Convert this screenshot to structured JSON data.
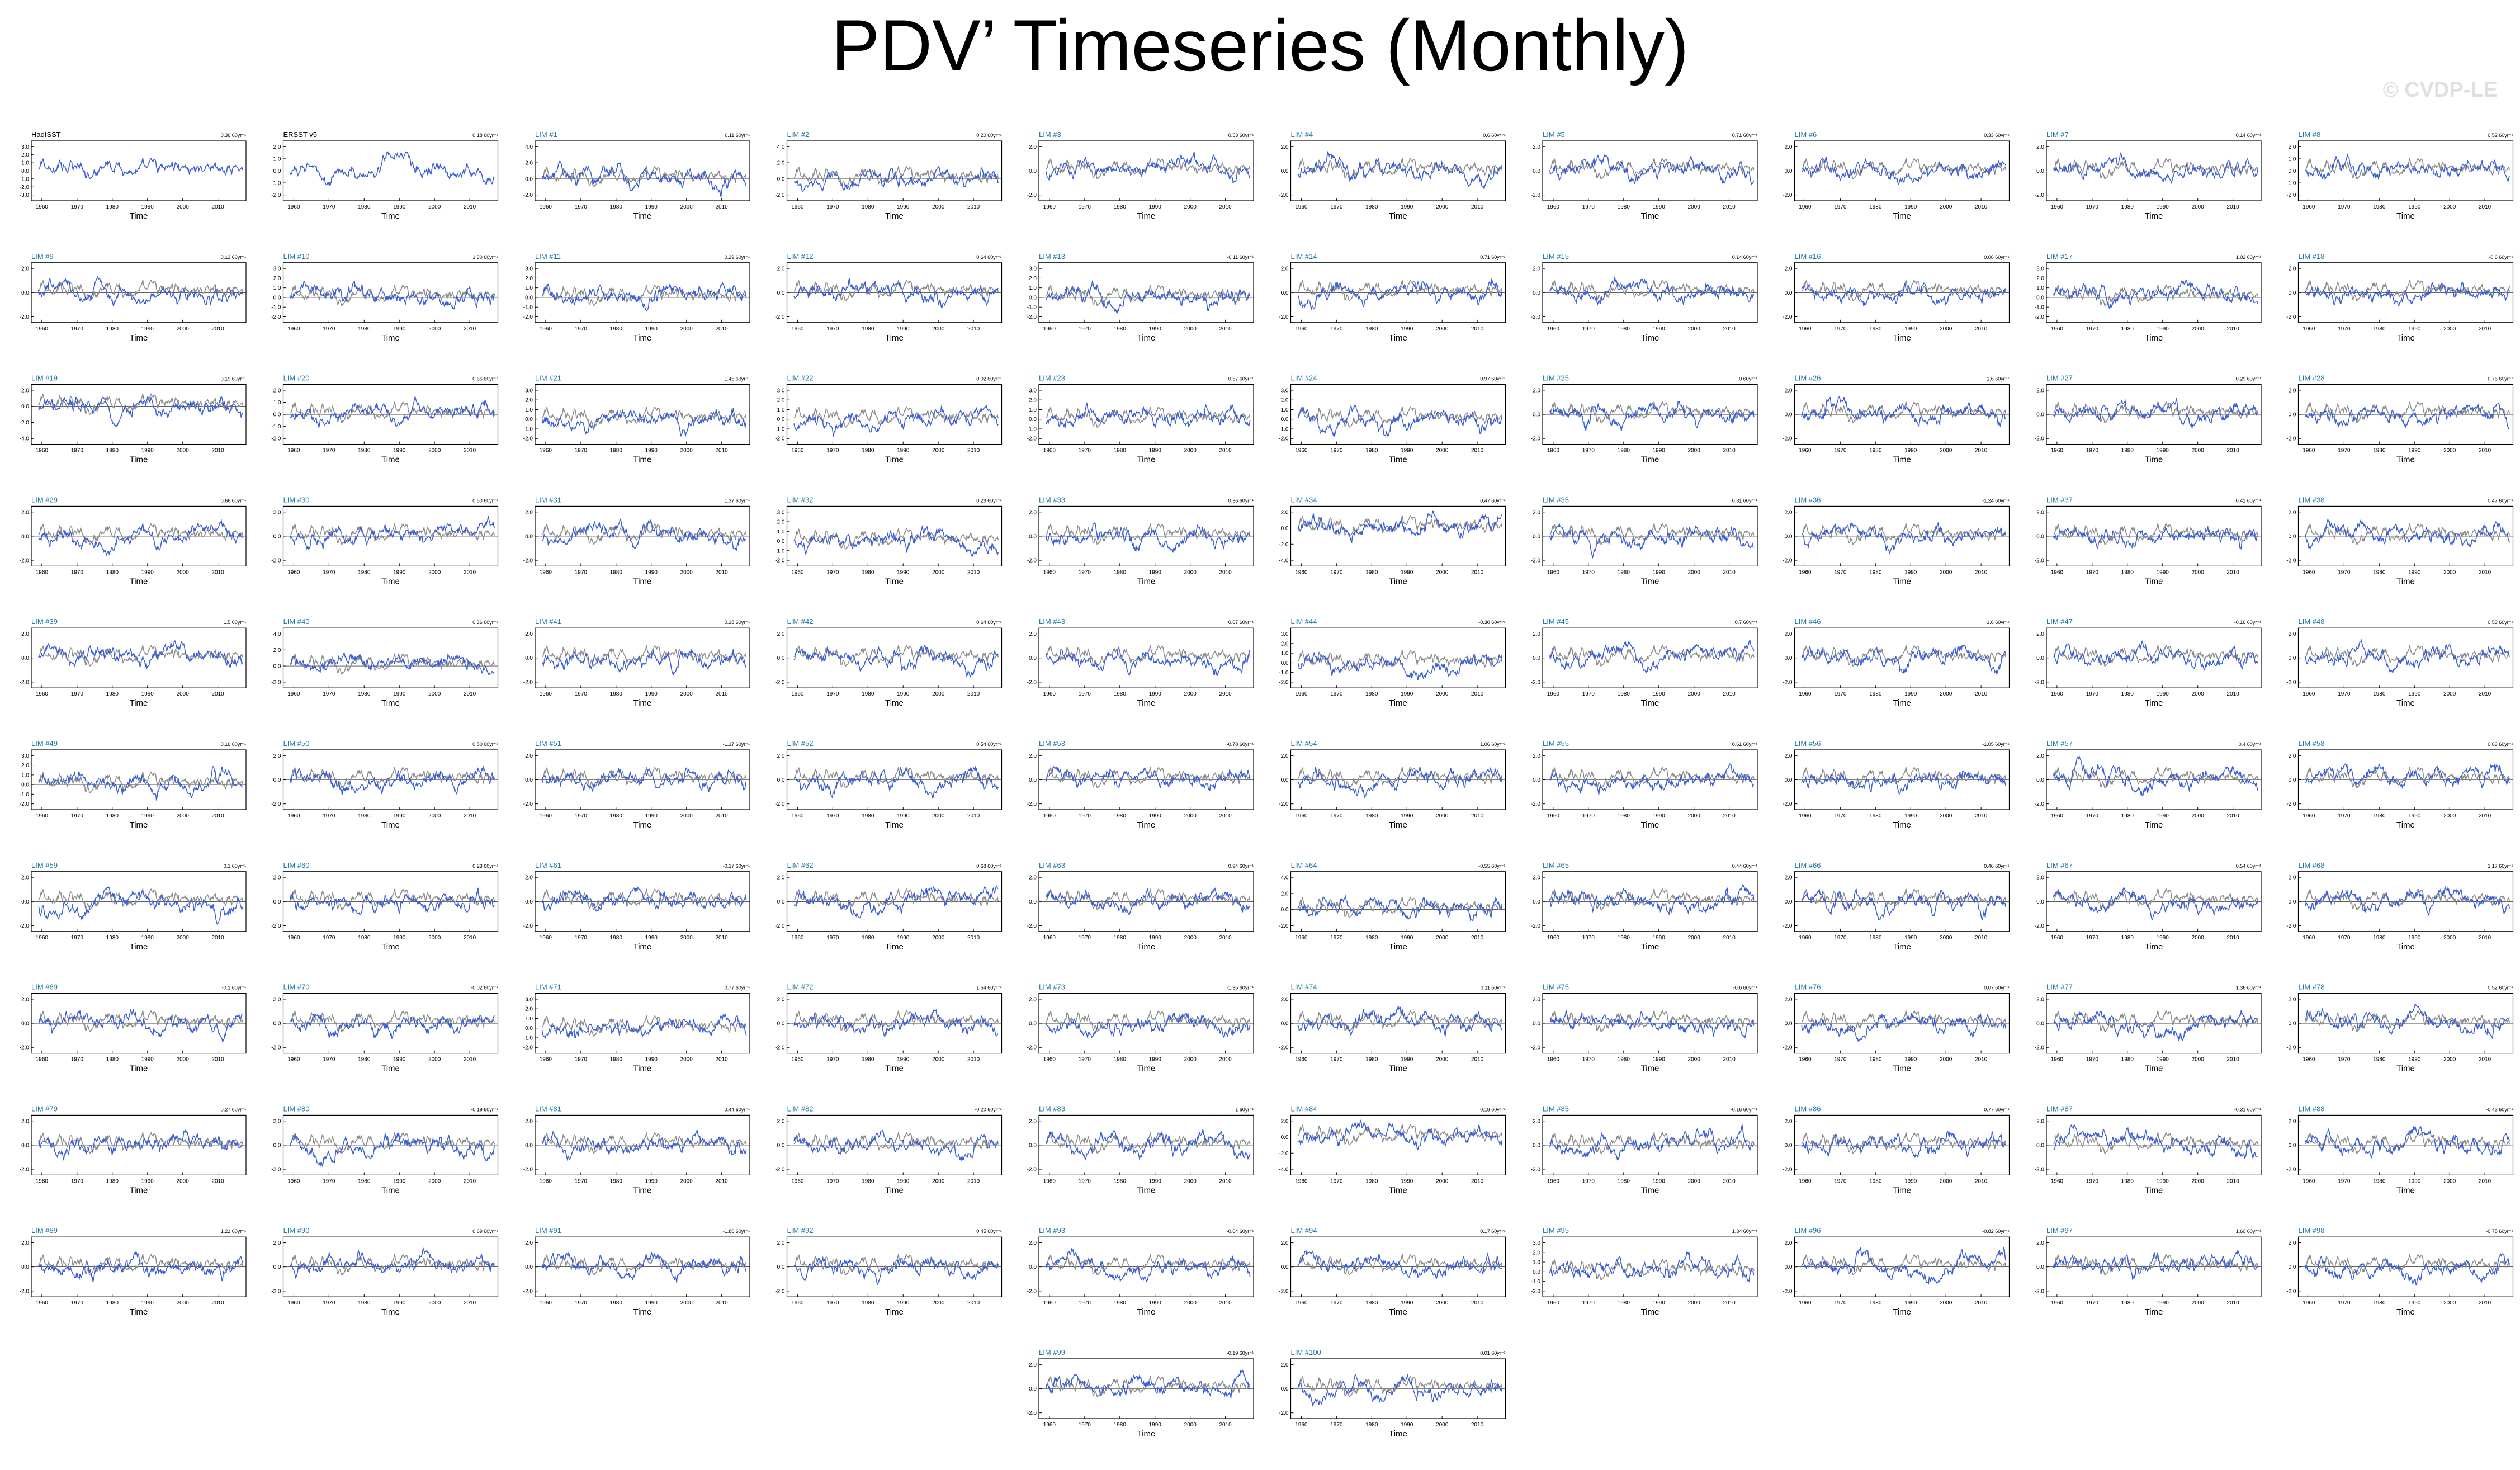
{
  "title": "PDV’ Timeseries (Monthly)",
  "watermark": "© CVDP-LE",
  "colors": {
    "member": "#3a5fd6",
    "observed": "#8c8c8c",
    "member_label": "#1f7aa6",
    "obs_label": "#000000"
  },
  "chart_data": {
    "type": "line",
    "layout": "small-multiples grid, 10 columns",
    "xlabel": "Time",
    "xlim": [
      1957,
      2018
    ],
    "x_ticks": [
      1960,
      1970,
      1980,
      1990,
      2000,
      2010
    ],
    "series_colors": {
      "model_member": "blue",
      "observed_reference": "gray"
    },
    "panels": [
      {
        "label": "HadISST",
        "trend": "0.36 60yr⁻¹",
        "yticks": [
          "3.0",
          "2.0",
          "1.0",
          "0.0",
          "-1.0",
          "-2.0",
          "-3.0"
        ]
      },
      {
        "label": "ERSST v5",
        "trend": "0.18 60yr⁻¹",
        "yticks": [
          "2.0",
          "1.0",
          "0.0",
          "-1.0",
          "-2.0"
        ]
      },
      {
        "label": "LIM #1",
        "trend": "0.11 60yr⁻¹",
        "yticks": [
          "4.0",
          "2.0",
          "0.0",
          "-2.0"
        ]
      },
      {
        "label": "LIM #2",
        "trend": "0.20 60yr⁻¹",
        "yticks": [
          "4.0",
          "2.0",
          "0.0",
          "-2.0"
        ]
      },
      {
        "label": "LIM #3",
        "trend": "0.53 60yr⁻¹",
        "yticks": [
          "2.0",
          "0.0",
          "-2.0"
        ]
      },
      {
        "label": "LIM #4",
        "trend": "0.6 60yr⁻¹",
        "yticks": [
          "2.0",
          "0.0",
          "-2.0"
        ]
      },
      {
        "label": "LIM #5",
        "trend": "0.71 60yr⁻¹",
        "yticks": [
          "2.0",
          "0.0",
          "-2.0"
        ]
      },
      {
        "label": "LIM #6",
        "trend": "0.33 60yr⁻¹",
        "yticks": [
          "2.0",
          "0.0",
          "-2.0"
        ]
      },
      {
        "label": "LIM #7",
        "trend": "0.14 60yr⁻¹",
        "yticks": [
          "2.0",
          "0.0",
          "-2.0"
        ]
      },
      {
        "label": "LIM #8",
        "trend": "0.52 60yr⁻¹",
        "yticks": [
          "2.0",
          "1.0",
          "0.0",
          "-1.0",
          "-2.0"
        ]
      },
      {
        "label": "LIM #9",
        "trend": "0.13 60yr⁻¹",
        "yticks": [
          "2.0",
          "0.0",
          "-2.0"
        ]
      },
      {
        "label": "LIM #10",
        "trend": "1.30 60yr⁻¹",
        "yticks": [
          "3.0",
          "2.0",
          "1.0",
          "0.0",
          "-1.0",
          "-2.0"
        ]
      },
      {
        "label": "LIM #11",
        "trend": "0.29 60yr⁻¹",
        "yticks": [
          "3.0",
          "2.0",
          "1.0",
          "0.0",
          "-1.0",
          "-2.0"
        ]
      },
      {
        "label": "LIM #12",
        "trend": "0.64 60yr⁻¹",
        "yticks": [
          "2.0",
          "0.0",
          "-2.0"
        ]
      },
      {
        "label": "LIM #13",
        "trend": "-0.11 60yr⁻¹",
        "yticks": [
          "3.0",
          "2.0",
          "1.0",
          "0.0",
          "-1.0",
          "-2.0"
        ]
      },
      {
        "label": "LIM #14",
        "trend": "0.71 60yr⁻¹",
        "yticks": [
          "2.0",
          "0.0",
          "-2.0"
        ]
      },
      {
        "label": "LIM #15",
        "trend": "0.14 60yr⁻¹",
        "yticks": [
          "2.0",
          "0.0",
          "-2.0"
        ]
      },
      {
        "label": "LIM #16",
        "trend": "0.06 60yr⁻¹",
        "yticks": [
          "2.0",
          "0.0",
          "-2.0"
        ]
      },
      {
        "label": "LIM #17",
        "trend": "1.02 60yr⁻¹",
        "yticks": [
          "3.0",
          "2.0",
          "1.0",
          "0.0",
          "-1.0",
          "-2.0"
        ]
      },
      {
        "label": "LIM #18",
        "trend": "-0.6 60yr⁻¹",
        "yticks": [
          "2.0",
          "0.0",
          "-2.0"
        ]
      },
      {
        "label": "LIM #19",
        "trend": "0.19 60yr⁻¹",
        "yticks": [
          "2.0",
          "0.0",
          "-2.0",
          "-4.0"
        ]
      },
      {
        "label": "LIM #20",
        "trend": "0.66 60yr⁻¹",
        "yticks": [
          "2.0",
          "1.0",
          "0.0",
          "-1.0",
          "-2.0"
        ]
      },
      {
        "label": "LIM #21",
        "trend": "1.45 60yr⁻¹",
        "yticks": [
          "3.0",
          "2.0",
          "1.0",
          "0.0",
          "-1.0",
          "-2.0"
        ]
      },
      {
        "label": "LIM #22",
        "trend": "0.02 60yr⁻¹",
        "yticks": [
          "3.0",
          "2.0",
          "1.0",
          "0.0",
          "-1.0",
          "-2.0"
        ]
      },
      {
        "label": "LIM #23",
        "trend": "0.57 60yr⁻¹",
        "yticks": [
          "3.0",
          "2.0",
          "1.0",
          "0.0",
          "-1.0",
          "-2.0"
        ]
      },
      {
        "label": "LIM #24",
        "trend": "0.97 60yr⁻¹",
        "yticks": [
          "3.0",
          "2.0",
          "1.0",
          "0.0",
          "-1.0",
          "-2.0"
        ]
      },
      {
        "label": "LIM #25",
        "trend": "0 60yr⁻¹",
        "yticks": [
          "2.0",
          "0.0",
          "-2.0"
        ]
      },
      {
        "label": "LIM #26",
        "trend": "1.6 60yr⁻¹",
        "yticks": [
          "2.0",
          "0.0",
          "-2.0"
        ]
      },
      {
        "label": "LIM #27",
        "trend": "0.29 60yr⁻¹",
        "yticks": [
          "2.0",
          "0.0",
          "-2.0"
        ]
      },
      {
        "label": "LIM #28",
        "trend": "0.76 60yr⁻¹",
        "yticks": [
          "2.0",
          "0.0",
          "-2.0"
        ]
      },
      {
        "label": "LIM #29",
        "trend": "0.66 60yr⁻¹",
        "yticks": [
          "2.0",
          "0.0",
          "-2.0"
        ]
      },
      {
        "label": "LIM #30",
        "trend": "0.50 60yr⁻¹",
        "yticks": [
          "2.0",
          "0.0",
          "-2.0"
        ]
      },
      {
        "label": "LIM #31",
        "trend": "1.37 60yr⁻¹",
        "yticks": [
          "2.0",
          "0.0",
          "-2.0"
        ]
      },
      {
        "label": "LIM #32",
        "trend": "0.28 60yr⁻¹",
        "yticks": [
          "3.0",
          "2.0",
          "1.0",
          "0.0",
          "-1.0",
          "-2.0"
        ]
      },
      {
        "label": "LIM #33",
        "trend": "0.36 60yr⁻¹",
        "yticks": [
          "2.0",
          "0.0",
          "-2.0"
        ]
      },
      {
        "label": "LIM #34",
        "trend": "0.47 60yr⁻¹",
        "yticks": [
          "2.0",
          "0.0",
          "-2.0",
          "-4.0"
        ]
      },
      {
        "label": "LIM #35",
        "trend": "0.31 60yr⁻¹",
        "yticks": [
          "2.0",
          "0.0",
          "-2.0"
        ]
      },
      {
        "label": "LIM #36",
        "trend": "-1.24 60yr⁻¹",
        "yticks": [
          "2.0",
          "0.0",
          "-2.0"
        ]
      },
      {
        "label": "LIM #37",
        "trend": "0.41 60yr⁻¹",
        "yticks": [
          "2.0",
          "0.0",
          "-2.0"
        ]
      },
      {
        "label": "LIM #38",
        "trend": "0.47 60yr⁻¹",
        "yticks": [
          "2.0",
          "0.0",
          "-2.0"
        ]
      },
      {
        "label": "LIM #39",
        "trend": "1.5 60yr⁻¹",
        "yticks": [
          "2.0",
          "0.0",
          "-2.0"
        ]
      },
      {
        "label": "LIM #40",
        "trend": "0.36 60yr⁻¹",
        "yticks": [
          "4.0",
          "2.0",
          "0.0",
          "-2.0"
        ]
      },
      {
        "label": "LIM #41",
        "trend": "0.18 60yr⁻¹",
        "yticks": [
          "2.0",
          "0.0",
          "-2.0"
        ]
      },
      {
        "label": "LIM #42",
        "trend": "0.64 60yr⁻¹",
        "yticks": [
          "2.0",
          "0.0",
          "-2.0"
        ]
      },
      {
        "label": "LIM #43",
        "trend": "0.67 60yr⁻¹",
        "yticks": [
          "2.0",
          "0.0",
          "-2.0"
        ]
      },
      {
        "label": "LIM #44",
        "trend": "-0.30 60yr⁻¹",
        "yticks": [
          "3.0",
          "2.0",
          "1.0",
          "0.0",
          "-1.0",
          "-2.0"
        ]
      },
      {
        "label": "LIM #45",
        "trend": "0.7 60yr⁻¹",
        "yticks": [
          "2.0",
          "0.0",
          "-2.0"
        ]
      },
      {
        "label": "LIM #46",
        "trend": "1.6 60yr⁻¹",
        "yticks": [
          "2.0",
          "0.0",
          "-2.0"
        ]
      },
      {
        "label": "LIM #47",
        "trend": "-0.16 60yr⁻¹",
        "yticks": [
          "2.0",
          "0.0",
          "-2.0"
        ]
      },
      {
        "label": "LIM #48",
        "trend": "0.53 60yr⁻¹",
        "yticks": [
          "2.0",
          "0.0",
          "-2.0"
        ]
      },
      {
        "label": "LIM #49",
        "trend": "0.16 60yr⁻¹",
        "yticks": [
          "3.0",
          "2.0",
          "1.0",
          "0.0",
          "-1.0",
          "-2.0"
        ]
      },
      {
        "label": "LIM #50",
        "trend": "0.80 60yr⁻¹",
        "yticks": [
          "2.0",
          "0.0",
          "-2.0"
        ]
      },
      {
        "label": "LIM #51",
        "trend": "-1.17 60yr⁻¹",
        "yticks": [
          "2.0",
          "0.0",
          "-2.0"
        ]
      },
      {
        "label": "LIM #52",
        "trend": "0.54 60yr⁻¹",
        "yticks": [
          "2.0",
          "0.0",
          "-2.0"
        ]
      },
      {
        "label": "LIM #53",
        "trend": "-0.78 60yr⁻¹",
        "yticks": [
          "2.0",
          "0.0",
          "-2.0"
        ]
      },
      {
        "label": "LIM #54",
        "trend": "1.06 60yr⁻¹",
        "yticks": [
          "2.0",
          "0.0",
          "-2.0"
        ]
      },
      {
        "label": "LIM #55",
        "trend": "0.61 60yr⁻¹",
        "yticks": [
          "2.0",
          "0.0",
          "-2.0"
        ]
      },
      {
        "label": "LIM #56",
        "trend": "-1.05 60yr⁻¹",
        "yticks": [
          "2.0",
          "0.0",
          "-2.0"
        ]
      },
      {
        "label": "LIM #57",
        "trend": "0.4 60yr⁻¹",
        "yticks": [
          "2.0",
          "0.0",
          "-2.0"
        ]
      },
      {
        "label": "LIM #58",
        "trend": "0.63 60yr⁻¹",
        "yticks": [
          "2.0",
          "0.0",
          "-2.0"
        ]
      },
      {
        "label": "LIM #59",
        "trend": "0.1 60yr⁻¹",
        "yticks": [
          "2.0",
          "0.0",
          "-2.0"
        ]
      },
      {
        "label": "LIM #60",
        "trend": "0.23 60yr⁻¹",
        "yticks": [
          "2.0",
          "0.0",
          "-2.0"
        ]
      },
      {
        "label": "LIM #61",
        "trend": "-0.17 60yr⁻¹",
        "yticks": [
          "2.0",
          "0.0",
          "-2.0"
        ]
      },
      {
        "label": "LIM #62",
        "trend": "0.68 60yr⁻¹",
        "yticks": [
          "2.0",
          "0.0",
          "-2.0"
        ]
      },
      {
        "label": "LIM #63",
        "trend": "0.94 60yr⁻¹",
        "yticks": [
          "2.0",
          "0.0",
          "-2.0"
        ]
      },
      {
        "label": "LIM #64",
        "trend": "-0.55 60yr⁻¹",
        "yticks": [
          "4.0",
          "2.0",
          "0.0",
          "-2.0"
        ]
      },
      {
        "label": "LIM #65",
        "trend": "0.44 60yr⁻¹",
        "yticks": [
          "2.0",
          "0.0",
          "-2.0"
        ]
      },
      {
        "label": "LIM #66",
        "trend": "0.46 60yr⁻¹",
        "yticks": [
          "2.0",
          "0.0",
          "-2.0"
        ]
      },
      {
        "label": "LIM #67",
        "trend": "0.54 60yr⁻¹",
        "yticks": [
          "2.0",
          "0.0",
          "-2.0"
        ]
      },
      {
        "label": "LIM #68",
        "trend": "1.17 60yr⁻¹",
        "yticks": [
          "2.0",
          "0.0",
          "-2.0"
        ]
      },
      {
        "label": "LIM #69",
        "trend": "-0.1 60yr⁻¹",
        "yticks": [
          "2.0",
          "0.0",
          "-2.0"
        ]
      },
      {
        "label": "LIM #70",
        "trend": "-0.02 60yr⁻¹",
        "yticks": [
          "2.0",
          "0.0",
          "-2.0"
        ]
      },
      {
        "label": "LIM #71",
        "trend": "0.77 60yr⁻¹",
        "yticks": [
          "3.0",
          "2.0",
          "1.0",
          "0.0",
          "-1.0",
          "-2.0"
        ]
      },
      {
        "label": "LIM #72",
        "trend": "1.54 60yr⁻¹",
        "yticks": [
          "2.0",
          "0.0",
          "-2.0"
        ]
      },
      {
        "label": "LIM #73",
        "trend": "-1.35 60yr⁻¹",
        "yticks": [
          "2.0",
          "0.0",
          "-2.0"
        ]
      },
      {
        "label": "LIM #74",
        "trend": "0.11 60yr⁻¹",
        "yticks": [
          "2.0",
          "0.0",
          "-2.0"
        ]
      },
      {
        "label": "LIM #75",
        "trend": "-0.6 60yr⁻¹",
        "yticks": [
          "2.0",
          "0.0",
          "-2.0"
        ]
      },
      {
        "label": "LIM #76",
        "trend": "0.07 60yr⁻¹",
        "yticks": [
          "2.0",
          "0.0",
          "-2.0"
        ]
      },
      {
        "label": "LIM #77",
        "trend": "1.36 60yr⁻¹",
        "yticks": [
          "2.0",
          "0.0",
          "-2.0"
        ]
      },
      {
        "label": "LIM #78",
        "trend": "0.52 60yr⁻¹",
        "yticks": [
          "2.0",
          "0.0",
          "-2.0"
        ]
      },
      {
        "label": "LIM #79",
        "trend": "0.27 60yr⁻¹",
        "yticks": [
          "2.0",
          "0.0",
          "-2.0"
        ]
      },
      {
        "label": "LIM #80",
        "trend": "-0.19 60yr⁻¹",
        "yticks": [
          "2.0",
          "0.0",
          "-2.0"
        ]
      },
      {
        "label": "LIM #81",
        "trend": "0.44 60yr⁻¹",
        "yticks": [
          "2.0",
          "0.0",
          "-2.0"
        ]
      },
      {
        "label": "LIM #82",
        "trend": "-0.20 60yr⁻¹",
        "yticks": [
          "2.0",
          "0.0",
          "-2.0"
        ]
      },
      {
        "label": "LIM #83",
        "trend": "1 60yr⁻¹",
        "yticks": [
          "2.0",
          "0.0",
          "-2.0"
        ]
      },
      {
        "label": "LIM #84",
        "trend": "0.18 60yr⁻¹",
        "yticks": [
          "2.0",
          "0.0",
          "-2.0",
          "-4.0"
        ]
      },
      {
        "label": "LIM #85",
        "trend": "-0.16 60yr⁻¹",
        "yticks": [
          "2.0",
          "0.0",
          "-2.0"
        ]
      },
      {
        "label": "LIM #86",
        "trend": "0.77 60yr⁻¹",
        "yticks": [
          "2.0",
          "0.0",
          "-2.0"
        ]
      },
      {
        "label": "LIM #87",
        "trend": "-0.31 60yr⁻¹",
        "yticks": [
          "2.0",
          "0.0",
          "-2.0"
        ]
      },
      {
        "label": "LIM #88",
        "trend": "-0.43 60yr⁻¹",
        "yticks": [
          "2.0",
          "0.0",
          "-2.0"
        ]
      },
      {
        "label": "LIM #89",
        "trend": "1.21 60yr⁻¹",
        "yticks": [
          "2.0",
          "0.0",
          "-2.0"
        ]
      },
      {
        "label": "LIM #90",
        "trend": "0.69 60yr⁻¹",
        "yticks": [
          "2.0",
          "0.0",
          "-2.0"
        ]
      },
      {
        "label": "LIM #91",
        "trend": "-1.86 60yr⁻¹",
        "yticks": [
          "2.0",
          "0.0",
          "-2.0"
        ]
      },
      {
        "label": "LIM #92",
        "trend": "0.45 60yr⁻¹",
        "yticks": [
          "2.0",
          "0.0",
          "-2.0"
        ]
      },
      {
        "label": "LIM #93",
        "trend": "-0.64 60yr⁻¹",
        "yticks": [
          "2.0",
          "0.0",
          "-2.0"
        ]
      },
      {
        "label": "LIM #94",
        "trend": "0.17 60yr⁻¹",
        "yticks": [
          "2.0",
          "0.0",
          "-2.0"
        ]
      },
      {
        "label": "LIM #95",
        "trend": "1.34 60yr⁻¹",
        "yticks": [
          "3.0",
          "2.0",
          "1.0",
          "0.0",
          "-1.0",
          "-2.0"
        ]
      },
      {
        "label": "LIM #96",
        "trend": "-0.82 60yr⁻¹",
        "yticks": [
          "2.0",
          "0.0",
          "-2.0"
        ]
      },
      {
        "label": "LIM #97",
        "trend": "1.60 60yr⁻¹",
        "yticks": [
          "2.0",
          "0.0",
          "-2.0"
        ]
      },
      {
        "label": "LIM #98",
        "trend": "-0.78 60yr⁻¹",
        "yticks": [
          "2.0",
          "0.0",
          "-2.0"
        ]
      },
      {
        "label": "LIM #99",
        "trend": "-0.19 60yr⁻¹",
        "yticks": [
          "2.0",
          "0.0",
          "-2.0"
        ]
      },
      {
        "label": "LIM #100",
        "trend": "0.01 60yr⁻¹",
        "yticks": [
          "2.0",
          "0.0",
          "-2.0"
        ]
      }
    ]
  }
}
